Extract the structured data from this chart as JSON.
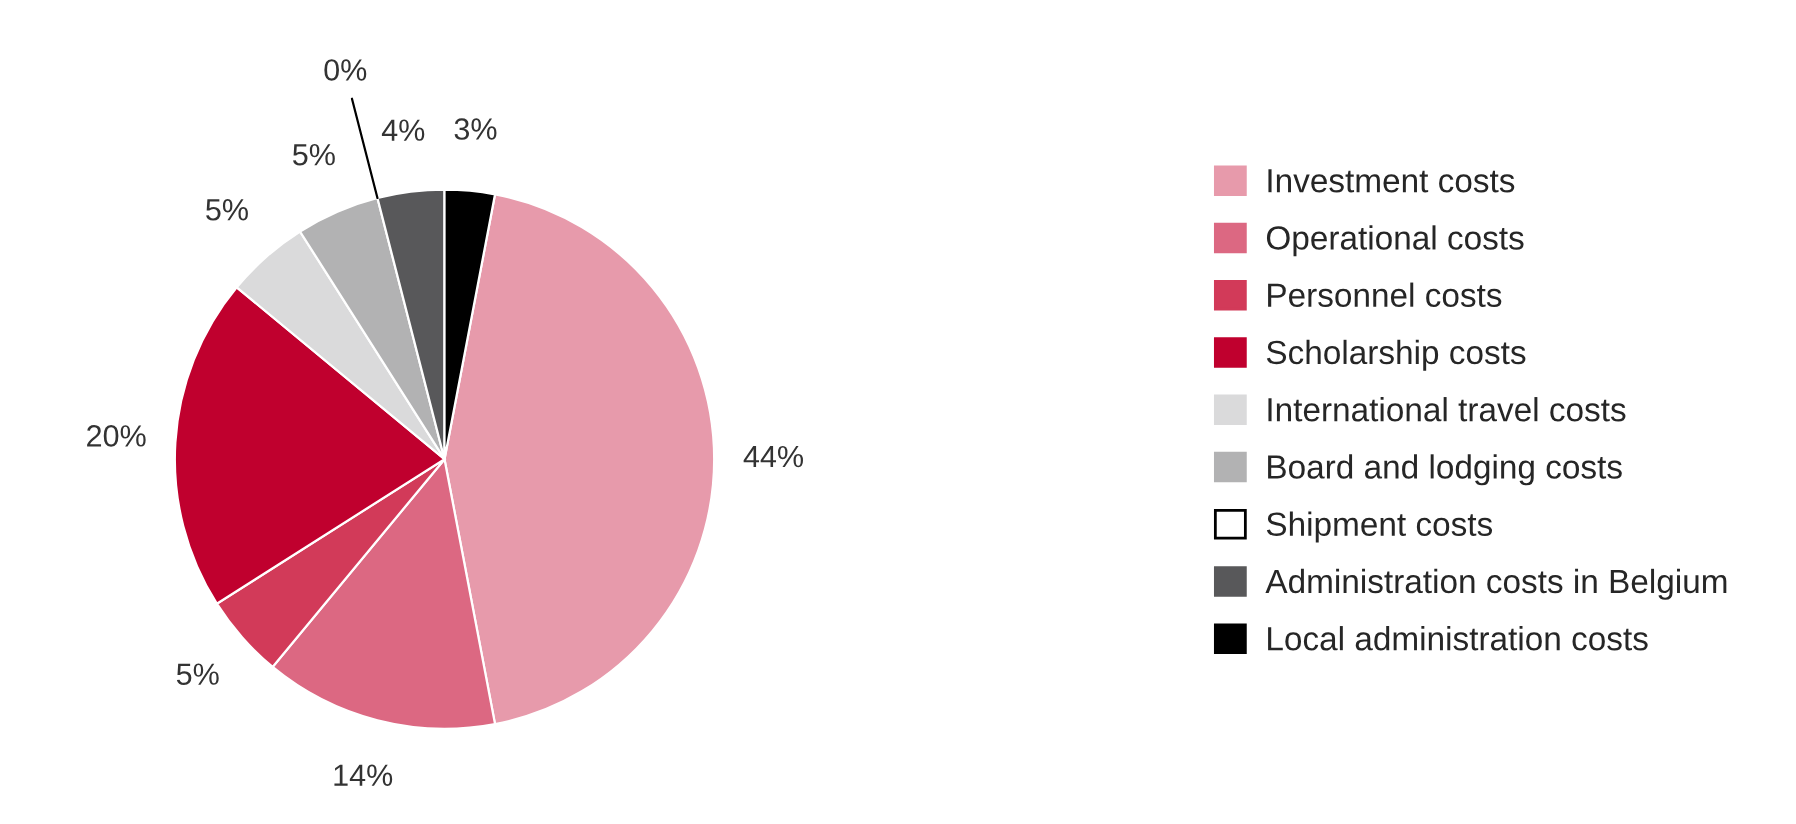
{
  "chart_data": {
    "type": "pie",
    "categories": [
      "Investment costs",
      "Operational costs",
      "Personnel costs",
      "Scholarship costs",
      "International travel costs",
      "Board and lodging costs",
      "Shipment costs",
      "Administration costs in Belgium",
      "Local administration costs"
    ],
    "values": [
      44,
      14,
      5,
      20,
      5,
      5,
      0,
      4,
      3
    ],
    "value_labels": [
      "44%",
      "14%",
      "5%",
      "20%",
      "5%",
      "5%",
      "0%",
      "4%",
      "3%"
    ],
    "colors": [
      "#e79aab",
      "#dc6882",
      "#d23a59",
      "#c0002e",
      "#dadadb",
      "#b2b2b3",
      "#ffffff",
      "#58585a",
      "#000000"
    ],
    "legend": "right"
  }
}
